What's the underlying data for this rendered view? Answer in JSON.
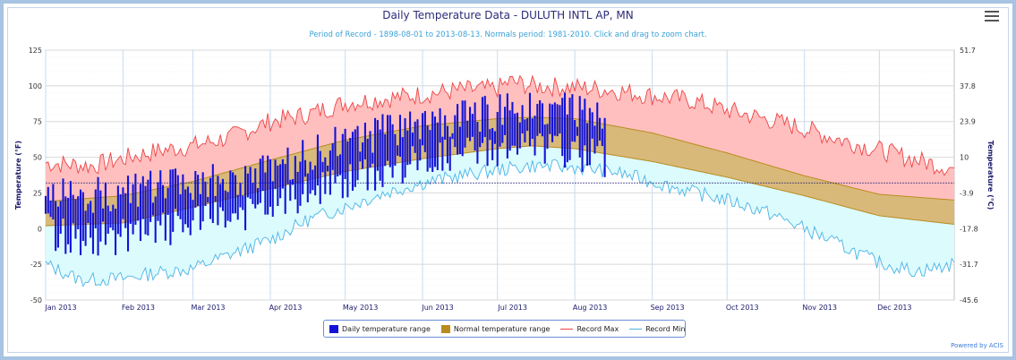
{
  "chart_data": {
    "type": "area",
    "title": "Daily Temperature Data - DULUTH INTL AP, MN",
    "subtitle": "Period of Record - 1898-08-01 to 2013-08-13. Normals period: 1981-2010. Click and drag to zoom chart.",
    "ylabel_left": "Temperature (°F)",
    "ylabel_right": "Temperature (°C)",
    "ylim": [
      -50,
      125
    ],
    "yticks_f": [
      -50,
      -25,
      0,
      25,
      50,
      75,
      100,
      125
    ],
    "yticks_c": [
      "-45.6",
      "-31.7",
      "-17.8",
      "-3.9",
      "10",
      "23.9",
      "37.8",
      "51.7"
    ],
    "freezing_line_f": 32,
    "xticks": [
      "Jan 2013",
      "Feb 2013",
      "Mar 2013",
      "Apr 2013",
      "May 2013",
      "Jun 2013",
      "Jul 2013",
      "Aug 2013",
      "Sep 2013",
      "Oct 2013",
      "Nov 2013",
      "Dec 2013"
    ],
    "legend": [
      "Daily temperature range",
      "Normal temperature range",
      "Record Max",
      "Record Min"
    ],
    "legend_position": "bottom-center",
    "grid": true,
    "colors": {
      "daily_range": "#1313d6",
      "normal_range": "#b98c1f",
      "normal_fill": "#d8b97a",
      "record_max": "#ee4444",
      "record_max_fill": "#ffbfbf",
      "record_min": "#4ab3e6",
      "record_min_fill": "#dcfbfd"
    },
    "normal": {
      "day": [
        1,
        32,
        60,
        91,
        121,
        152,
        182,
        196,
        213,
        244,
        274,
        305,
        335,
        365
      ],
      "high": [
        19,
        23,
        33,
        48,
        62,
        72,
        77,
        78,
        77,
        67,
        53,
        37,
        24,
        20
      ],
      "low": [
        2,
        4,
        15,
        28,
        40,
        49,
        56,
        58,
        56,
        47,
        36,
        23,
        9,
        3
      ]
    },
    "record_max": {
      "day": [
        1,
        20,
        32,
        45,
        60,
        75,
        91,
        106,
        121,
        137,
        152,
        167,
        182,
        187,
        196,
        213,
        228,
        244,
        259,
        274,
        289,
        305,
        320,
        335,
        350,
        365
      ],
      "value": [
        46,
        44,
        49,
        54,
        58,
        64,
        75,
        80,
        88,
        91,
        94,
        97,
        98,
        103,
        100,
        99,
        97,
        93,
        90,
        83,
        77,
        70,
        62,
        55,
        48,
        42
      ]
    },
    "record_min": {
      "day": [
        1,
        15,
        32,
        45,
        60,
        75,
        91,
        106,
        121,
        137,
        152,
        167,
        182,
        196,
        213,
        228,
        244,
        259,
        274,
        289,
        305,
        320,
        335,
        350,
        365
      ],
      "value": [
        -25,
        -36,
        -35,
        -31,
        -28,
        -18,
        -8,
        6,
        15,
        25,
        32,
        37,
        41,
        44,
        43,
        40,
        33,
        26,
        20,
        12,
        0,
        -12,
        -24,
        -30,
        -25
      ]
    },
    "daily_range": {
      "note": "one bar per day from Jan 1 to Aug 13, 2013 (days 1-225)",
      "day_start": 1,
      "day_end": 225,
      "high_curve": {
        "day": [
          1,
          15,
          32,
          45,
          60,
          75,
          91,
          106,
          121,
          137,
          152,
          167,
          182,
          196,
          213,
          225
        ],
        "value": [
          25,
          22,
          24,
          27,
          30,
          33,
          38,
          50,
          60,
          67,
          72,
          76,
          80,
          86,
          80,
          75
        ]
      },
      "low_curve": {
        "day": [
          1,
          15,
          32,
          45,
          60,
          75,
          91,
          106,
          121,
          137,
          152,
          167,
          182,
          196,
          213,
          225
        ],
        "value": [
          0,
          -6,
          -4,
          0,
          6,
          10,
          18,
          27,
          35,
          42,
          50,
          55,
          58,
          60,
          55,
          50
        ]
      }
    }
  },
  "legend_labels": {
    "daily": "Daily temperature range",
    "normal": "Normal temperature range",
    "max": "Record Max",
    "min": "Record Min"
  },
  "credit": "Powered by ACIS",
  "menu_icon": "hamburger-menu-icon"
}
